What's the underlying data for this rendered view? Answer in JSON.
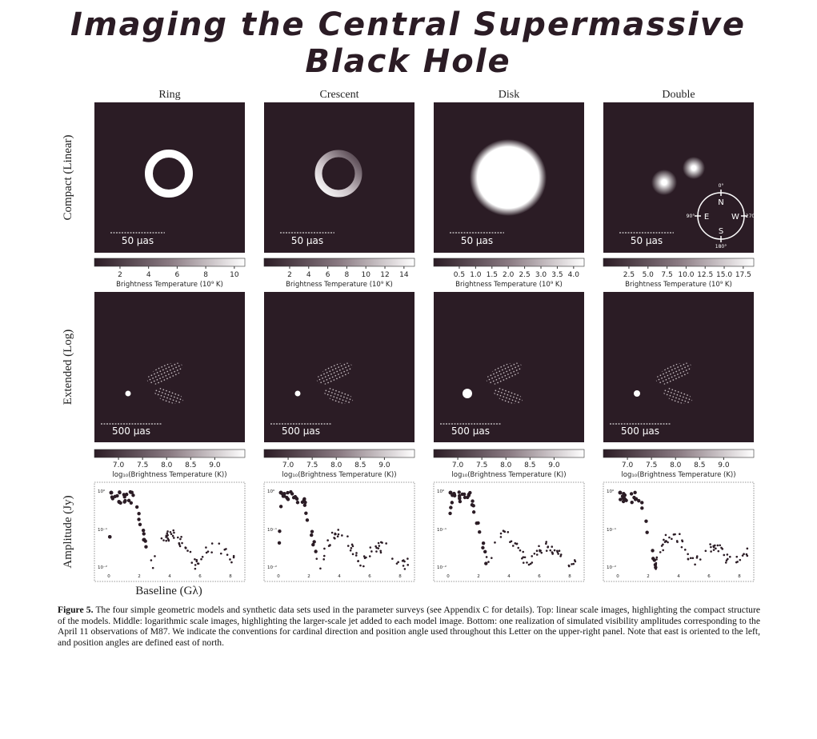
{
  "title": {
    "lines": [
      "Imaging the Central Supermassive",
      "Black Hole"
    ]
  },
  "columns": [
    "Ring",
    "Crescent",
    "Disk",
    "Double"
  ],
  "rows": {
    "compact": "Compact (Linear)",
    "extended": "Extended (Log)",
    "amplitude": "Amplitude (Jy)",
    "baseline": "Baseline (Gλ)"
  },
  "scale_bars": {
    "compact": "50 μas",
    "extended": "500 μas"
  },
  "colorbars": {
    "compact": {
      "label": "Brightness Temperature (10⁹ K)",
      "ticks": [
        [
          "2",
          "4",
          "6",
          "8",
          "10"
        ],
        [
          "2",
          "4",
          "6",
          "8",
          "10",
          "12",
          "14"
        ],
        [
          "0.5",
          "1.0",
          "1.5",
          "2.0",
          "2.5",
          "3.0",
          "3.5",
          "4.0"
        ],
        [
          "2.5",
          "5.0",
          "7.5",
          "10.0",
          "12.5",
          "15.0",
          "17.5"
        ]
      ]
    },
    "extended": {
      "label": "log₁₀(Brightness Temperature (K))",
      "ticks": [
        "7.0",
        "7.5",
        "8.0",
        "8.5",
        "9.0"
      ]
    }
  },
  "amplitude_axis": {
    "yticks": [
      "10⁰",
      "10⁻¹",
      "10⁻²"
    ],
    "xticks": [
      "0",
      "2",
      "4",
      "6",
      "8"
    ]
  },
  "compass": {
    "directions": [
      "N",
      "E",
      "S",
      "W"
    ],
    "angles": [
      "0°",
      "90°",
      "180°",
      "270°"
    ]
  },
  "caption": {
    "label": "Figure 5.",
    "text": "The four simple geometric models and synthetic data sets used in the parameter surveys (see Appendix C for details). Top: linear scale images, highlighting the compact structure of the models. Middle: logarithmic scale images, highlighting the larger-scale jet added to each model image. Bottom: one realization of simulated visibility amplitudes corresponding to the April 11 observations of M87. We indicate the conventions for cardinal direction and position angle used throughout this Letter on the upper-right panel. Note that east is oriented to the left, and position angles are defined east of north."
  }
}
